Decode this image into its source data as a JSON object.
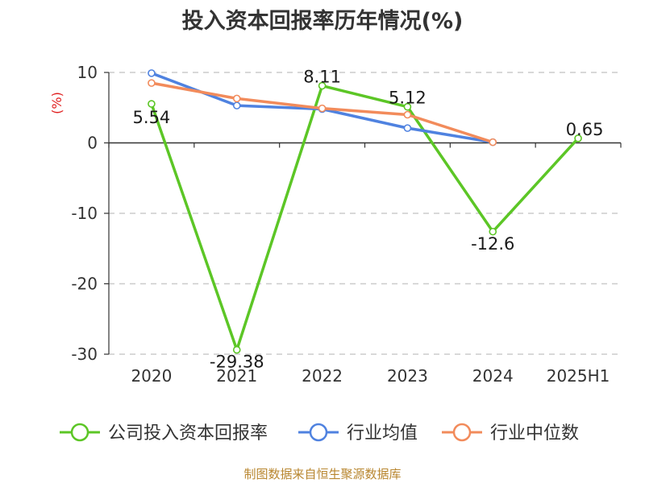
{
  "title": "投入资本回报率历年情况(%)",
  "source": "制图数据来自恒生聚源数据库",
  "chart_data": {
    "type": "line",
    "unit_label": "(%)",
    "categories": [
      "2020",
      "2021",
      "2022",
      "2023",
      "2024",
      "2025H1"
    ],
    "ylim": [
      -30,
      10
    ],
    "yticks": [
      10,
      0,
      -10,
      -20,
      -30
    ],
    "grid": true,
    "legend_position": "bottom",
    "series": [
      {
        "name": "公司投入资本回报率",
        "color": "#5cc626",
        "values": [
          5.54,
          -29.38,
          8.11,
          5.12,
          -12.6,
          0.65
        ],
        "labels": [
          "5.54",
          "-29.38",
          "8.11",
          "5.12",
          "-12.6",
          "0.65"
        ]
      },
      {
        "name": "行业均值",
        "color": "#4f82e0",
        "values": [
          9.9,
          5.3,
          4.8,
          2.1,
          0.1,
          null
        ]
      },
      {
        "name": "行业中位数",
        "color": "#f28b5b",
        "values": [
          8.5,
          6.3,
          4.9,
          4.0,
          0.1,
          null
        ]
      }
    ]
  }
}
